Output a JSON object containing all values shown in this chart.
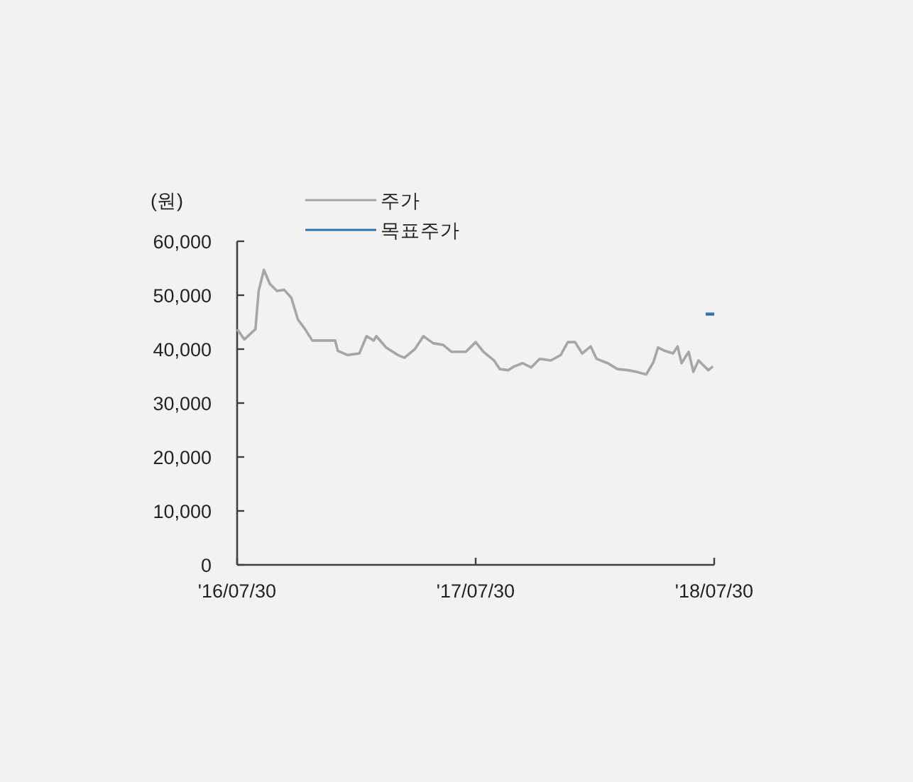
{
  "chart_data": {
    "type": "line",
    "ylabel": "(원)",
    "legend": "top",
    "grid": false,
    "marker": "none",
    "line_style": "solid",
    "xlim": [
      "2016-07-30",
      "2018-07-30"
    ],
    "xticks": [
      {
        "value": "2016-07-30",
        "label": "'16/07/30"
      },
      {
        "value": "2017-07-30",
        "label": "'17/07/30"
      },
      {
        "value": "2018-07-30",
        "label": "'18/07/30"
      }
    ],
    "ylim": [
      0,
      60000
    ],
    "yticks": [
      {
        "value": 0,
        "label": "0"
      },
      {
        "value": 10000,
        "label": "10,000"
      },
      {
        "value": 20000,
        "label": "20,000"
      },
      {
        "value": 30000,
        "label": "30,000"
      },
      {
        "value": 40000,
        "label": "40,000"
      },
      {
        "value": 50000,
        "label": "50,000"
      },
      {
        "value": 60000,
        "label": "60,000"
      }
    ],
    "series": [
      {
        "name": "주가",
        "color": "#a6a6a6",
        "x": [
          "2016-07-30",
          "2016-08-10",
          "2016-08-27",
          "2016-09-01",
          "2016-09-09",
          "2016-09-18",
          "2016-09-29",
          "2016-10-10",
          "2016-10-21",
          "2016-10-31",
          "2016-11-11",
          "2016-11-22",
          "2016-12-03",
          "2016-12-27",
          "2016-12-31",
          "2017-01-15",
          "2017-02-02",
          "2017-02-13",
          "2017-02-24",
          "2017-02-28",
          "2017-03-15",
          "2017-04-02",
          "2017-04-12",
          "2017-04-28",
          "2017-05-11",
          "2017-05-26",
          "2017-06-10",
          "2017-06-23",
          "2017-07-15",
          "2017-07-30",
          "2017-08-11",
          "2017-08-27",
          "2017-09-05",
          "2017-09-18",
          "2017-09-27",
          "2017-10-10",
          "2017-10-23",
          "2017-11-05",
          "2017-11-22",
          "2017-12-07",
          "2017-12-18",
          "2017-12-29",
          "2018-01-09",
          "2018-01-22",
          "2018-01-31",
          "2018-02-17",
          "2018-03-04",
          "2018-03-20",
          "2018-04-02",
          "2018-04-17",
          "2018-04-28",
          "2018-05-05",
          "2018-05-15",
          "2018-05-28",
          "2018-06-04",
          "2018-06-10",
          "2018-06-21",
          "2018-06-28",
          "2018-07-06",
          "2018-07-15",
          "2018-07-21",
          "2018-07-28"
        ],
        "values": [
          43700,
          41800,
          43700,
          50800,
          54700,
          52100,
          50800,
          51000,
          49500,
          45500,
          43700,
          41600,
          41600,
          41600,
          39700,
          38900,
          39200,
          42400,
          41600,
          42400,
          40300,
          38900,
          38400,
          40000,
          42400,
          41100,
          40800,
          39500,
          39500,
          41300,
          39500,
          37900,
          36300,
          36100,
          36800,
          37400,
          36600,
          38200,
          37900,
          38900,
          41300,
          41300,
          39200,
          40500,
          38200,
          37400,
          36300,
          36100,
          35800,
          35300,
          37600,
          40300,
          39700,
          39200,
          40500,
          37400,
          39500,
          35800,
          37900,
          36800,
          36100,
          36800
        ]
      },
      {
        "name": "목표주가",
        "color": "#2e75b6",
        "x": [
          "2018-07-17",
          "2018-07-30"
        ],
        "values": [
          46500,
          46500
        ]
      }
    ]
  }
}
